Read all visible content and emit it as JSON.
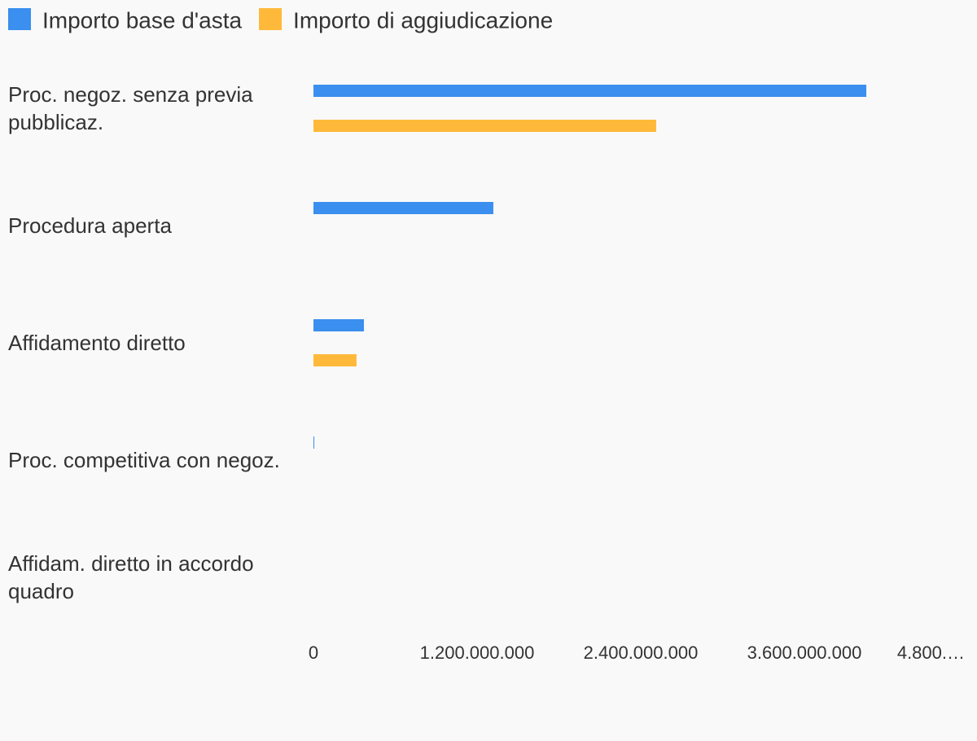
{
  "chart_data": {
    "type": "hbar",
    "categories": [
      "Proc. negoz. senza previa pubblicaz.",
      "Procedura aperta",
      "Affidamento diretto",
      "Proc. competitiva con negoz.",
      "Affidam. diretto in accordo quadro"
    ],
    "series": [
      {
        "name": "Importo base d'asta",
        "color": "#3a8fef",
        "values": [
          4054000000,
          1319000000,
          370000000,
          6000000,
          0
        ]
      },
      {
        "name": "Importo di aggiudicazione",
        "color": "#ffb93a",
        "values": [
          2513000000,
          0,
          316000000,
          0,
          0
        ]
      }
    ],
    "xlim": [
      0,
      4800000000
    ],
    "xticks": [
      0,
      {
        "value": 1200000000,
        "label": "1.200.000.000"
      },
      {
        "value": 2400000000,
        "label": "2.400.000.000"
      },
      {
        "value": 3600000000,
        "label": "3.600.000.000"
      },
      {
        "value": 4800000000,
        "label": "4.800.…"
      }
    ],
    "legend": "top-left"
  }
}
